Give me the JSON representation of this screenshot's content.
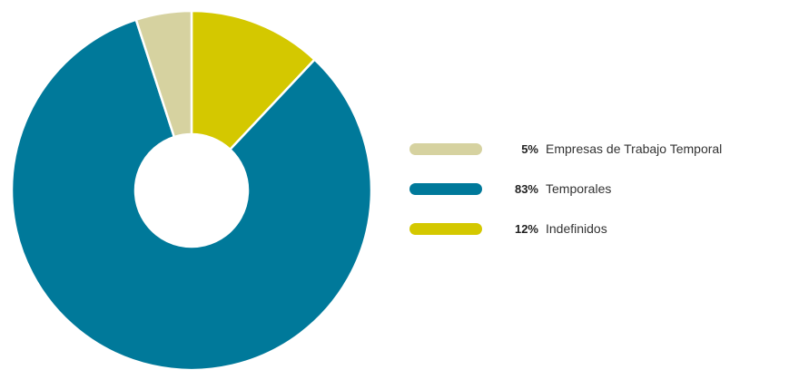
{
  "chart_data": {
    "type": "pie",
    "variant": "donut",
    "title": "",
    "grid": false,
    "legend_placement": "right",
    "categories": [
      "Empresas de Trabajo Temporal",
      "Temporales",
      "Indefinidos"
    ],
    "values": [
      5,
      83,
      12
    ],
    "value_labels": [
      "5%",
      "83%",
      "12%"
    ],
    "colors": [
      "#d6d2a0",
      "#00799a",
      "#d4c800"
    ]
  }
}
